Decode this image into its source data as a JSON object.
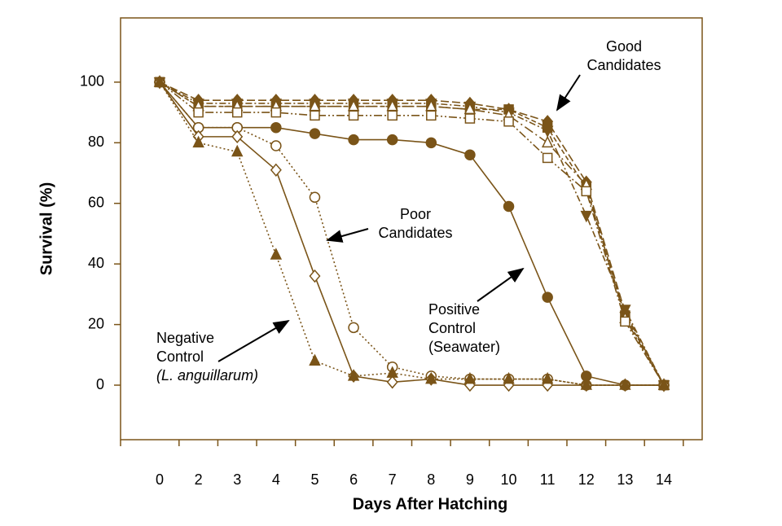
{
  "chart_data": {
    "type": "line",
    "x_label": "Days After Hatching",
    "y_label": "Survival (%)",
    "categories": [
      "0",
      "2",
      "3",
      "4",
      "5",
      "6",
      "7",
      "8",
      "9",
      "10",
      "11",
      "12",
      "13",
      "14"
    ],
    "ylim": [
      -18,
      121.2
    ],
    "yticks": [
      0,
      20,
      40,
      60,
      80,
      100
    ],
    "series": [
      {
        "color": "#7a5418",
        "marker": "diamond",
        "filled": true,
        "dash": "10,4",
        "values": [
          100,
          94,
          94,
          94,
          94,
          94,
          94,
          94,
          93,
          91,
          87,
          67,
          24,
          0
        ]
      },
      {
        "color": "#7a5418",
        "marker": "triangle-down",
        "filled": true,
        "dash": "8,3,2,3",
        "values": [
          100,
          93,
          93,
          93,
          93,
          93,
          93,
          93,
          92,
          90,
          84,
          56,
          25,
          0
        ]
      },
      {
        "color": "#7a5418",
        "marker": "square",
        "filled": true,
        "dash": "6,3",
        "values": [
          100,
          92,
          92,
          92,
          92,
          92,
          92,
          92,
          91,
          91,
          85,
          65,
          23,
          0
        ]
      },
      {
        "color": "#7a5418",
        "marker": "triangle",
        "filled": false,
        "dash": "12,4,2,4",
        "values": [
          100,
          92,
          92,
          92,
          92,
          92,
          92,
          92,
          91,
          89,
          80,
          66,
          22,
          0
        ]
      },
      {
        "color": "#7a5418",
        "marker": "square",
        "filled": false,
        "dash": "10,3,2,3,2,3",
        "values": [
          100,
          90,
          90,
          90,
          89,
          89,
          89,
          89,
          88,
          87,
          75,
          64,
          21,
          0
        ]
      },
      {
        "color": "#7a5418",
        "marker": "circle",
        "filled": true,
        "dash": "",
        "values": [
          100,
          85,
          85,
          85,
          83,
          81,
          81,
          80,
          76,
          59,
          29,
          3,
          0,
          0
        ]
      },
      {
        "color": "#7a5418",
        "marker": "circle",
        "filled": false,
        "dash": "2,3",
        "values": [
          100,
          85,
          85,
          79,
          62,
          19,
          6,
          3,
          2,
          2,
          2,
          0,
          0,
          0
        ]
      },
      {
        "color": "#7a5418",
        "marker": "diamond",
        "filled": false,
        "dash": "",
        "values": [
          100,
          82,
          82,
          71,
          36,
          3,
          1,
          2,
          0,
          0,
          0,
          0,
          0,
          0
        ]
      },
      {
        "color": "#7a5418",
        "marker": "triangle",
        "filled": true,
        "dash": "2,3",
        "values": [
          100,
          80,
          77,
          43,
          8,
          3,
          4,
          2,
          2,
          2,
          2,
          0,
          0,
          0
        ]
      }
    ],
    "annotations": [
      {
        "lines": [
          "Good",
          "Candidates"
        ]
      },
      {
        "lines": [
          "Poor",
          "Candidates"
        ]
      },
      {
        "lines": [
          "Positive",
          "Control",
          "(Seawater)"
        ]
      },
      {
        "lines": [
          "Negative",
          "Control",
          "(L. anguillarum)"
        ]
      }
    ]
  }
}
